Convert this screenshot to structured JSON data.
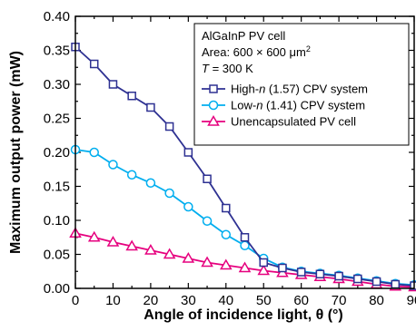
{
  "chart_data": {
    "type": "line",
    "xlabel": "Angle of incidence light, θ (°)",
    "ylabel": "Maximum output power (mW)",
    "xlim": [
      0,
      90
    ],
    "ylim": [
      0,
      0.4
    ],
    "xticks": [
      "0",
      "10",
      "20",
      "30",
      "40",
      "50",
      "60",
      "70",
      "80",
      "90"
    ],
    "yticks": [
      "0.00",
      "0.05",
      "0.10",
      "0.15",
      "0.20",
      "0.25",
      "0.30",
      "0.35",
      "0.40"
    ],
    "grid": false,
    "legend_position": "top-right",
    "annotation": {
      "line1": "AlGaInP PV cell",
      "line2_prefix": "Area: 600 × 600 ",
      "line2_unit": "μm",
      "line2_exp": "2",
      "line3_var": "T",
      "line3_rest": " = 300 K"
    },
    "x": [
      0,
      5,
      10,
      15,
      20,
      25,
      30,
      35,
      40,
      45,
      50,
      55,
      60,
      65,
      70,
      75,
      80,
      85,
      90
    ],
    "series": [
      {
        "name": "High-n (1.57) CPV system",
        "label_pre": "High-",
        "label_var": "n",
        "label_post": " (1.57) CPV system",
        "color": "#2e3192",
        "marker": "square",
        "values": [
          0.355,
          0.33,
          0.3,
          0.283,
          0.266,
          0.238,
          0.2,
          0.161,
          0.118,
          0.075,
          0.038,
          0.03,
          0.024,
          0.021,
          0.018,
          0.014,
          0.01,
          0.006,
          0.004
        ]
      },
      {
        "name": "Low-n (1.41) CPV system",
        "label_pre": "Low-",
        "label_var": "n",
        "label_post": " (1.41) CPV system",
        "color": "#00aeef",
        "marker": "circle",
        "values": [
          0.204,
          0.2,
          0.182,
          0.167,
          0.155,
          0.14,
          0.12,
          0.099,
          0.079,
          0.063,
          0.044,
          0.031,
          0.025,
          0.022,
          0.019,
          0.015,
          0.011,
          0.007,
          0.005
        ]
      },
      {
        "name": "Unencapsulated PV cell",
        "label_pre": "Unencapsulated PV cell",
        "label_var": "",
        "label_post": "",
        "color": "#e6007e",
        "marker": "triangle",
        "values": [
          0.081,
          0.075,
          0.068,
          0.062,
          0.056,
          0.05,
          0.044,
          0.038,
          0.034,
          0.03,
          0.026,
          0.023,
          0.02,
          0.017,
          0.014,
          0.01,
          0.006,
          0.003,
          0.002
        ]
      }
    ]
  }
}
